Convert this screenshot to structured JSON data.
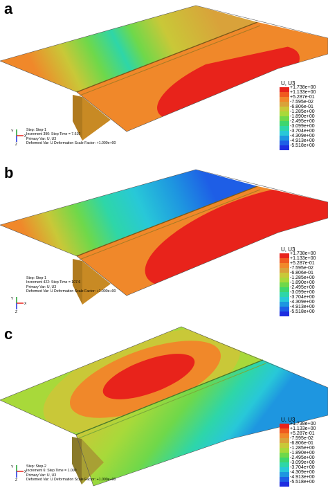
{
  "legend": {
    "title": "U, U3",
    "values": [
      "+1.738e+00",
      "+1.133e+00",
      "+5.287e-01",
      "-7.595e-02",
      "-6.806e-01",
      "-1.285e+00",
      "-1.890e+00",
      "-2.495e+00",
      "-3.099e+00",
      "-3.704e+00",
      "-4.309e+00",
      "-4.913e+00",
      "-5.518e+00"
    ],
    "colors": [
      "#e8231b",
      "#f05a1f",
      "#f0882a",
      "#d9a23a",
      "#c9c838",
      "#a8d93a",
      "#6fd84a",
      "#3ed66e",
      "#2ed6a8",
      "#28c8d8",
      "#1e96e0",
      "#1e5ee6",
      "#1e2de0"
    ]
  },
  "triad": {
    "y": "Y",
    "x": "X",
    "z": "Z"
  },
  "panels": [
    {
      "letter": "a",
      "step_line": "Step: Step-1",
      "increment_line": "Increment     390: Step Time =     7.610",
      "primary_line": "Primary Var: U, U3",
      "deformed_line": "Deformed Var: U   Deformation Scale Factor: +1.000e+00"
    },
    {
      "letter": "b",
      "step_line": "Step: Step-1",
      "increment_line": "Increment     422: Step Time =     107.6",
      "primary_line": "Primary Var: U, U3",
      "deformed_line": "Deformed Var: U   Deformation Scale Factor: +1.000e+00"
    },
    {
      "letter": "c",
      "step_line": "Step: Step-2",
      "increment_line": "Increment       6: Step Time =     1.000",
      "primary_line": "Primary Var: U, U3",
      "deformed_line": "Deformed Var: U   Deformation Scale Factor: +1.000e+00"
    }
  ]
}
